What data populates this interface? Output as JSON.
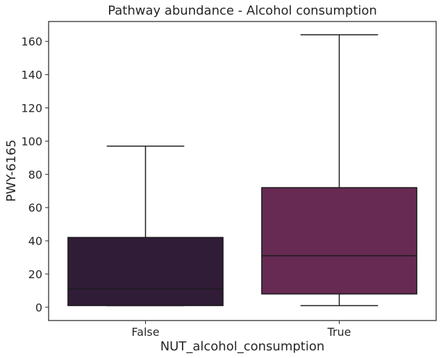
{
  "chart_data": {
    "type": "box",
    "title": "Pathway abundance - Alcohol consumption",
    "xlabel": "NUT_alcohol_consumption",
    "ylabel": "PWY-6165",
    "ylim": [
      -8,
      172
    ],
    "yticks": [
      0,
      20,
      40,
      60,
      80,
      100,
      120,
      140,
      160
    ],
    "ytick_labels": [
      "0",
      "20",
      "40",
      "60",
      "80",
      "100",
      "120",
      "140",
      "160"
    ],
    "categories": [
      "False",
      "True"
    ],
    "boxes": [
      {
        "category": "False",
        "whisker_low": 1,
        "q1": 1,
        "median": 11,
        "q3": 42,
        "whisker_high": 97,
        "color": "#311c37"
      },
      {
        "category": "True",
        "whisker_low": 1,
        "q1": 8,
        "median": 31,
        "q3": 72,
        "whisker_high": 164,
        "color": "#662a53"
      }
    ],
    "grid": false,
    "legend": "none"
  }
}
